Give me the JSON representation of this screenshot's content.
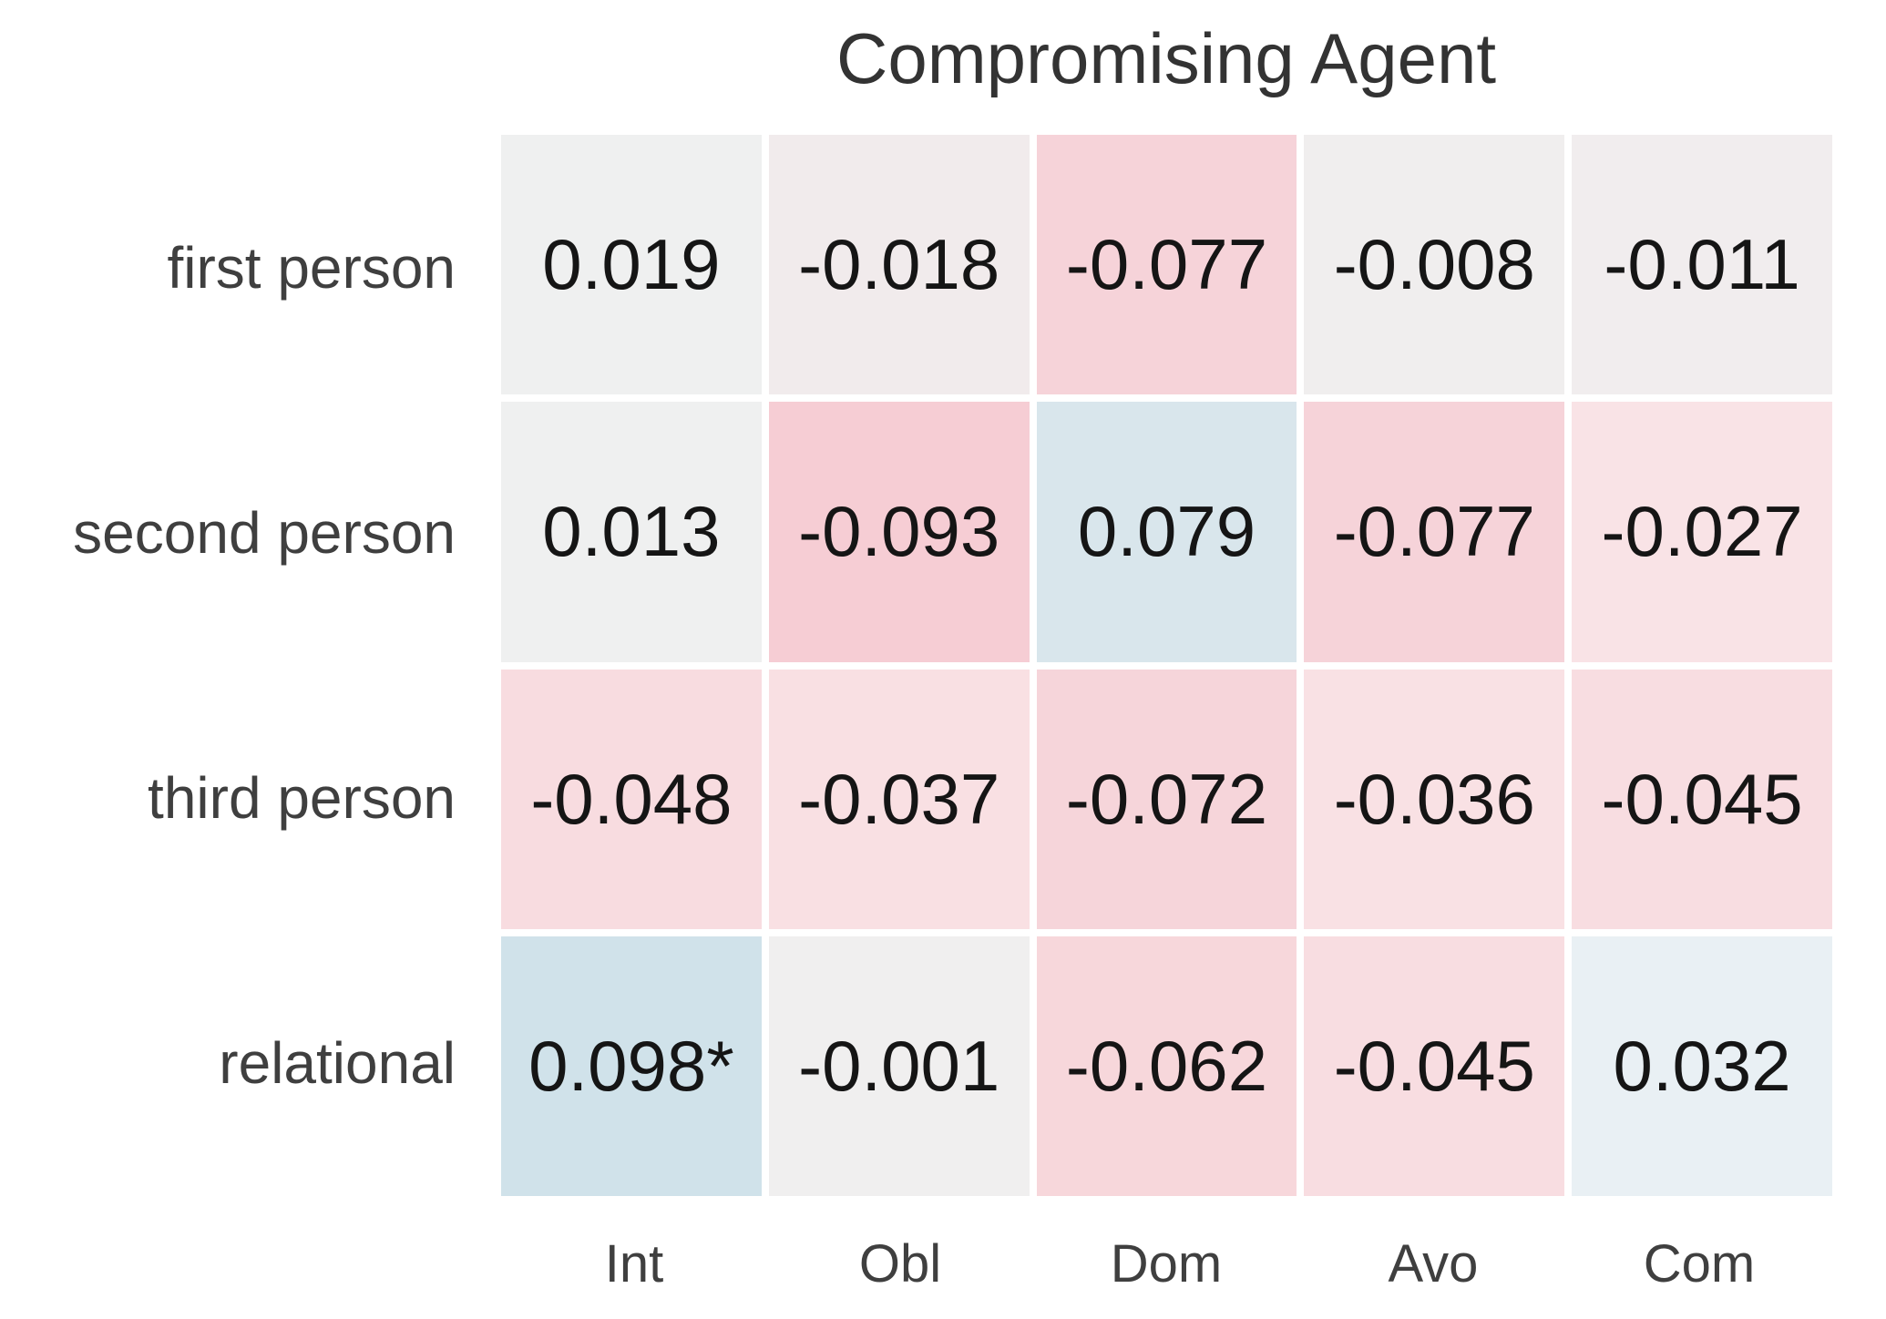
{
  "chart_data": {
    "type": "heatmap",
    "title": "Compromising Agent",
    "rows": [
      "first person",
      "second person",
      "third person",
      "relational"
    ],
    "columns": [
      "Int",
      "Obl",
      "Dom",
      "Avo",
      "Com"
    ],
    "series": [
      {
        "name": "first person",
        "values": [
          0.019,
          -0.018,
          -0.077,
          -0.008,
          -0.011
        ]
      },
      {
        "name": "second person",
        "values": [
          0.013,
          -0.093,
          0.079,
          -0.077,
          -0.027
        ]
      },
      {
        "name": "third person",
        "values": [
          -0.048,
          -0.037,
          -0.072,
          -0.036,
          -0.045
        ]
      },
      {
        "name": "relational",
        "values": [
          0.098,
          -0.001,
          -0.062,
          -0.045,
          0.032
        ]
      }
    ],
    "annotation_note": "0.098*",
    "colors": {
      "negative_max": "#f6cdd4",
      "positive_max": "#d0e2ea",
      "neutral": "#f0efef",
      "gap": "#ffffff"
    },
    "cells": [
      [
        {
          "label": "0.019",
          "value": 0.019,
          "color": "#eff0f0"
        },
        {
          "label": "-0.018",
          "value": -0.018,
          "color": "#f1ebec"
        },
        {
          "label": "-0.077",
          "value": -0.077,
          "color": "#f6d3d9"
        },
        {
          "label": "-0.008",
          "value": -0.008,
          "color": "#f0eeee"
        },
        {
          "label": "-0.011",
          "value": -0.011,
          "color": "#f1edee"
        }
      ],
      [
        {
          "label": "0.013",
          "value": 0.013,
          "color": "#eff0f0"
        },
        {
          "label": "-0.093",
          "value": -0.093,
          "color": "#f6cdd4"
        },
        {
          "label": "0.079",
          "value": 0.079,
          "color": "#d9e6ec"
        },
        {
          "label": "-0.077",
          "value": -0.077,
          "color": "#f6d3d9"
        },
        {
          "label": "-0.027",
          "value": -0.027,
          "color": "#f9e3e6"
        }
      ],
      [
        {
          "label": "-0.048",
          "value": -0.048,
          "color": "#f8dce0"
        },
        {
          "label": "-0.037",
          "value": -0.037,
          "color": "#f9e0e3"
        },
        {
          "label": "-0.072",
          "value": -0.072,
          "color": "#f6d5da"
        },
        {
          "label": "-0.036",
          "value": -0.036,
          "color": "#f9e1e4"
        },
        {
          "label": "-0.045",
          "value": -0.045,
          "color": "#f8dde1"
        }
      ],
      [
        {
          "label": "0.098*",
          "value": 0.098,
          "color": "#d0e2ea"
        },
        {
          "label": "-0.001",
          "value": -0.001,
          "color": "#f0efef"
        },
        {
          "label": "-0.062",
          "value": -0.062,
          "color": "#f7d7db"
        },
        {
          "label": "-0.045",
          "value": -0.045,
          "color": "#f8dde1"
        },
        {
          "label": "0.032",
          "value": 0.032,
          "color": "#e9f0f4"
        }
      ]
    ]
  }
}
